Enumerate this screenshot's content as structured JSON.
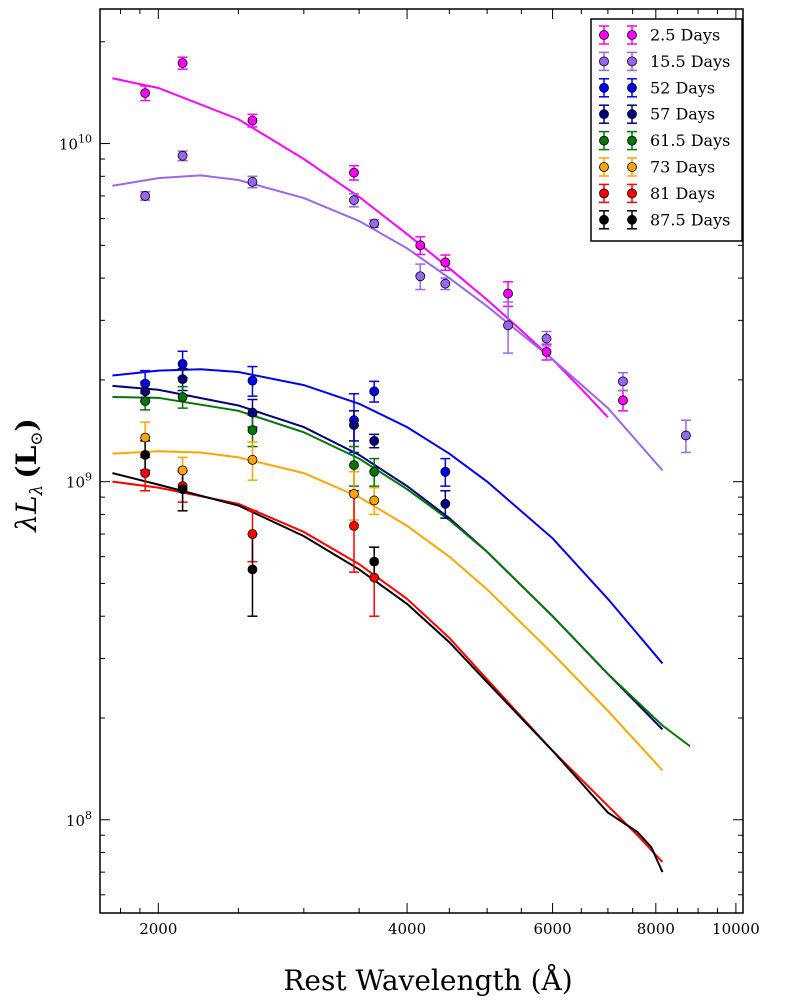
{
  "chart_data": {
    "type": "scatter",
    "xlabel": "Rest Wavelength (Å)",
    "ylabel_main": "λL",
    "ylabel_sub": "λ",
    "ylabel_unit": "(L",
    "ylabel_unit_sub": "⊙",
    "ylabel_close": ")",
    "x_scale": "log",
    "y_scale": "log",
    "xlim": [
      1700,
      10200
    ],
    "ylim": [
      53000000,
      25000000000
    ],
    "x_ticks": [
      {
        "value": 2000,
        "label": "2000"
      },
      {
        "value": 4000,
        "label": "4000"
      },
      {
        "value": 6000,
        "label": "6000"
      },
      {
        "value": 8000,
        "label": "8000"
      },
      {
        "value": 10000,
        "label": "10000"
      }
    ],
    "y_ticks": [
      {
        "value": 100000000,
        "base": "10",
        "exp": "8"
      },
      {
        "value": 1000000000,
        "base": "10",
        "exp": "9"
      },
      {
        "value": 10000000000,
        "base": "10",
        "exp": "10"
      }
    ],
    "legend_position": "top-right",
    "series": [
      {
        "name": "2.5 Days",
        "label": "2.5 Days",
        "color": "#ff00ff",
        "points": [
          [
            1928,
            14100000000,
            700000000
          ],
          [
            2140,
            17300000000,
            700000000
          ],
          [
            2600,
            11700000000,
            500000000
          ],
          [
            3450,
            8200000000,
            400000000
          ],
          [
            4150,
            5000000000,
            300000000
          ],
          [
            4450,
            4450000000,
            230000000
          ],
          [
            5300,
            3600000000,
            300000000
          ],
          [
            5900,
            2420000000,
            130000000
          ],
          [
            7300,
            1740000000,
            120000000
          ]
        ],
        "curve": [
          [
            1760,
            15600000000
          ],
          [
            2000,
            14600000000
          ],
          [
            2500,
            11800000000
          ],
          [
            3000,
            9000000000
          ],
          [
            3500,
            6950000000
          ],
          [
            4000,
            5400000000
          ],
          [
            4500,
            4280000000
          ],
          [
            5000,
            3450000000
          ],
          [
            5500,
            2800000000
          ],
          [
            6000,
            2300000000
          ],
          [
            6500,
            1880000000
          ],
          [
            7000,
            1550000000
          ]
        ]
      },
      {
        "name": "15.5 Days",
        "label": "15.5 Days",
        "color": "#9966ee",
        "points": [
          [
            1928,
            7000000000,
            200000000
          ],
          [
            2140,
            9200000000,
            300000000
          ],
          [
            2600,
            7700000000,
            300000000
          ],
          [
            3450,
            6800000000,
            300000000
          ],
          [
            3650,
            5800000000,
            150000000
          ],
          [
            4150,
            4050000000,
            350000000
          ],
          [
            4450,
            3850000000,
            150000000
          ],
          [
            5300,
            2900000000,
            500000000
          ],
          [
            5900,
            2650000000,
            130000000
          ],
          [
            7300,
            1980000000,
            120000000
          ],
          [
            8700,
            1370000000,
            150000000
          ]
        ],
        "curve": [
          [
            1760,
            7500000000
          ],
          [
            2000,
            7900000000
          ],
          [
            2250,
            8050000000
          ],
          [
            2500,
            7800000000
          ],
          [
            3000,
            6900000000
          ],
          [
            3500,
            5900000000
          ],
          [
            4000,
            4900000000
          ],
          [
            4500,
            4000000000
          ],
          [
            5000,
            3300000000
          ],
          [
            6000,
            2300000000
          ],
          [
            7000,
            1650000000
          ],
          [
            8150,
            1080000000
          ]
        ]
      },
      {
        "name": "52 Days",
        "label": "52 Days",
        "color": "#0000ee",
        "points": [
          [
            1928,
            1950000000,
            180000000
          ],
          [
            2140,
            2230000000,
            200000000
          ],
          [
            2600,
            1990000000,
            200000000
          ],
          [
            3450,
            1520000000,
            300000000
          ],
          [
            3650,
            1850000000,
            130000000
          ],
          [
            4450,
            1070000000,
            100000000
          ]
        ],
        "curve": [
          [
            1760,
            2060000000
          ],
          [
            2000,
            2130000000
          ],
          [
            2250,
            2150000000
          ],
          [
            2500,
            2110000000
          ],
          [
            3000,
            1930000000
          ],
          [
            3500,
            1700000000
          ],
          [
            4000,
            1450000000
          ],
          [
            4500,
            1210000000
          ],
          [
            5000,
            1000000000
          ],
          [
            6000,
            680000000
          ],
          [
            7000,
            450000000
          ],
          [
            8150,
            290000000
          ]
        ]
      },
      {
        "name": "57 Days",
        "label": "57 Days",
        "color": "#000080",
        "points": [
          [
            1928,
            1850000000,
            120000000
          ],
          [
            2140,
            2010000000,
            150000000
          ],
          [
            2600,
            1600000000,
            150000000
          ],
          [
            3450,
            1470000000,
            150000000
          ],
          [
            3650,
            1320000000,
            60000000
          ],
          [
            4450,
            860000000,
            80000000
          ]
        ],
        "curve": [
          [
            1760,
            1920000000
          ],
          [
            2000,
            1870000000
          ],
          [
            2500,
            1680000000
          ],
          [
            3000,
            1450000000
          ],
          [
            3500,
            1200000000
          ],
          [
            4000,
            970000000
          ],
          [
            4500,
            780000000
          ],
          [
            5000,
            620000000
          ],
          [
            6000,
            400000000
          ],
          [
            7000,
            270000000
          ],
          [
            8150,
            185000000
          ]
        ]
      },
      {
        "name": "61.5 Days",
        "label": "61.5 Days",
        "color": "#007700",
        "points": [
          [
            1928,
            1730000000,
            100000000
          ],
          [
            2140,
            1780000000,
            130000000
          ],
          [
            2600,
            1420000000,
            150000000
          ],
          [
            3450,
            1120000000,
            150000000
          ],
          [
            3650,
            1070000000,
            100000000
          ]
        ],
        "curve": [
          [
            1760,
            1780000000
          ],
          [
            2000,
            1770000000
          ],
          [
            2500,
            1620000000
          ],
          [
            3000,
            1400000000
          ],
          [
            3500,
            1170000000
          ],
          [
            4000,
            950000000
          ],
          [
            4500,
            770000000
          ],
          [
            5000,
            620000000
          ],
          [
            6000,
            400000000
          ],
          [
            7000,
            270000000
          ],
          [
            8150,
            190000000
          ],
          [
            8800,
            165000000
          ]
        ]
      },
      {
        "name": "73 Days",
        "label": "73 Days",
        "color": "#ffa500",
        "points": [
          [
            1928,
            1350000000,
            150000000
          ],
          [
            2140,
            1080000000,
            100000000
          ],
          [
            2600,
            1160000000,
            150000000
          ],
          [
            3450,
            920000000,
            150000000
          ],
          [
            3650,
            880000000,
            80000000
          ]
        ],
        "curve": [
          [
            1760,
            1210000000
          ],
          [
            2000,
            1230000000
          ],
          [
            2250,
            1220000000
          ],
          [
            2500,
            1180000000
          ],
          [
            3000,
            1060000000
          ],
          [
            3500,
            900000000
          ],
          [
            4000,
            740000000
          ],
          [
            4500,
            600000000
          ],
          [
            5000,
            480000000
          ],
          [
            6000,
            310000000
          ],
          [
            7000,
            210000000
          ],
          [
            8150,
            140000000
          ]
        ]
      },
      {
        "name": "81 Days",
        "label": "81 Days",
        "color": "#ff0000",
        "points": [
          [
            1928,
            1060000000,
            120000000
          ],
          [
            2140,
            970000000,
            100000000
          ],
          [
            2600,
            700000000,
            120000000
          ],
          [
            3450,
            740000000,
            200000000
          ],
          [
            3650,
            520000000,
            120000000
          ]
        ],
        "curve": [
          [
            1760,
            1000000000
          ],
          [
            2000,
            960000000
          ],
          [
            2500,
            860000000
          ],
          [
            3000,
            710000000
          ],
          [
            3500,
            570000000
          ],
          [
            4000,
            450000000
          ],
          [
            4500,
            345000000
          ],
          [
            5000,
            260000000
          ],
          [
            6000,
            160000000
          ],
          [
            7000,
            110000000
          ],
          [
            7600,
            90000000
          ],
          [
            8150,
            75000000
          ]
        ]
      },
      {
        "name": "87.5 Days",
        "label": "87.5 Days",
        "color": "#000000",
        "points": [
          [
            1928,
            1200000000,
            120000000
          ],
          [
            2140,
            950000000,
            130000000
          ],
          [
            2600,
            550000000,
            150000000
          ],
          [
            3650,
            580000000,
            60000000
          ]
        ],
        "curve": [
          [
            1760,
            1060000000
          ],
          [
            2000,
            980000000
          ],
          [
            2500,
            850000000
          ],
          [
            3000,
            690000000
          ],
          [
            3500,
            550000000
          ],
          [
            4000,
            435000000
          ],
          [
            4500,
            335000000
          ],
          [
            5000,
            255000000
          ],
          [
            6000,
            160000000
          ],
          [
            7000,
            105000000
          ],
          [
            7600,
            92000000
          ],
          [
            7900,
            83000000
          ],
          [
            8150,
            70000000
          ]
        ]
      }
    ]
  }
}
